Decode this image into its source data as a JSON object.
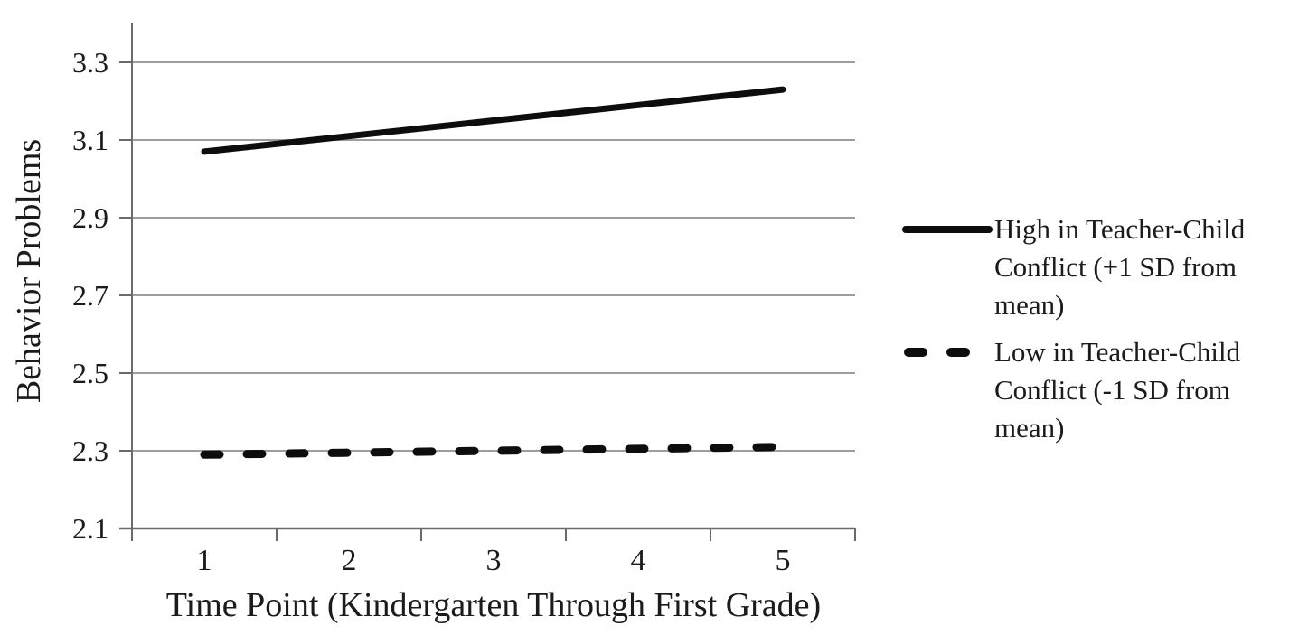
{
  "chart_data": {
    "type": "line",
    "title": "",
    "xlabel": "Time Point (Kindergarten Through First Grade)",
    "ylabel": "Behavior Problems",
    "x": [
      1,
      2,
      3,
      4,
      5
    ],
    "xtick_labels": [
      "1",
      "2",
      "3",
      "4",
      "5"
    ],
    "yticks": [
      2.1,
      2.3,
      2.5,
      2.7,
      2.9,
      3.1,
      3.3
    ],
    "ytick_labels": [
      "2.1",
      "2.3",
      "2.5",
      "2.7",
      "2.9",
      "3.1",
      "3.3"
    ],
    "ylim": [
      2.1,
      3.4
    ],
    "grid": true,
    "legend_position": "right",
    "series": [
      {
        "name": "High in Teacher-Child Conflict (+1 SD from mean)",
        "style": "solid",
        "color": "#0d0d0d",
        "values": [
          3.07,
          3.11,
          3.15,
          3.19,
          3.23
        ]
      },
      {
        "name": "Low in Teacher-Child Conflict (-1 SD from mean)",
        "style": "dashed",
        "color": "#0d0d0d",
        "values": [
          2.29,
          2.295,
          2.3,
          2.305,
          2.31
        ]
      }
    ],
    "colors": {
      "gridline": "#9e9e9e",
      "axis": "#6b6b6b",
      "text": "#1b1b1b",
      "background": "#ffffff"
    }
  }
}
